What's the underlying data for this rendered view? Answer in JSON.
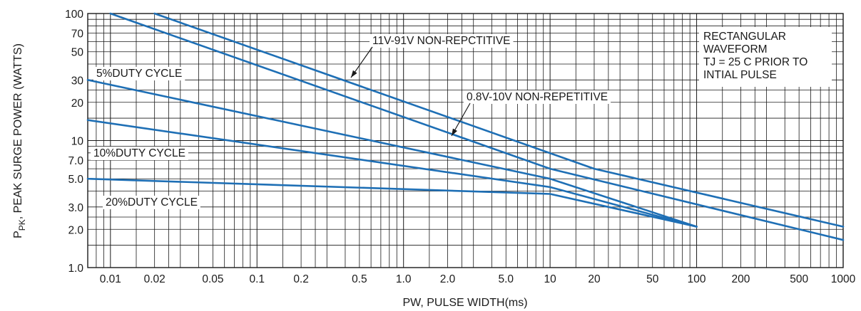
{
  "chart_data": {
    "type": "line",
    "xscale": "log",
    "yscale": "log",
    "xlim": [
      0.007,
      1000
    ],
    "ylim": [
      1.0,
      100
    ],
    "grid": true,
    "xlabel": "PW, PULSE WIDTH(ms)",
    "ylabel_main": "P",
    "ylabel_sub": "PK",
    "ylabel_rest": ", PEAK SURGE POWER (WATTS)",
    "x_ticks": [
      {
        "value": 0.01,
        "label": "0.01"
      },
      {
        "value": 0.02,
        "label": "0.02"
      },
      {
        "value": 0.05,
        "label": "0.05"
      },
      {
        "value": 0.1,
        "label": "0.1"
      },
      {
        "value": 0.2,
        "label": "0.2"
      },
      {
        "value": 0.5,
        "label": "0.5"
      },
      {
        "value": 1,
        "label": "1.0"
      },
      {
        "value": 2,
        "label": "2.0"
      },
      {
        "value": 5,
        "label": "5.0"
      },
      {
        "value": 10,
        "label": "10"
      },
      {
        "value": 20,
        "label": "20"
      },
      {
        "value": 50,
        "label": "50"
      },
      {
        "value": 100,
        "label": "100"
      },
      {
        "value": 200,
        "label": "200"
      },
      {
        "value": 500,
        "label": "500"
      },
      {
        "value": 1000,
        "label": "1000"
      }
    ],
    "y_ticks": [
      {
        "value": 1,
        "label": "1.0"
      },
      {
        "value": 2,
        "label": "2.0"
      },
      {
        "value": 3,
        "label": "3.0"
      },
      {
        "value": 5,
        "label": "5.0"
      },
      {
        "value": 7,
        "label": "7.0"
      },
      {
        "value": 10,
        "label": "10"
      },
      {
        "value": 20,
        "label": "20"
      },
      {
        "value": 30,
        "label": "30"
      },
      {
        "value": 50,
        "label": "50"
      },
      {
        "value": 70,
        "label": "70"
      },
      {
        "value": 100,
        "label": "100"
      }
    ],
    "series": [
      {
        "name": "11V-91V NON-REPCTITIVE",
        "points": [
          [
            0.02,
            100
          ],
          [
            20,
            6.0
          ],
          [
            1000,
            2.1
          ]
        ]
      },
      {
        "name": "0.8V-10V NON-REPETITIVE",
        "points": [
          [
            0.01,
            100
          ],
          [
            10,
            6.0
          ],
          [
            1000,
            1.65
          ]
        ]
      },
      {
        "name": "5%DUTY CYCLE",
        "points": [
          [
            0.007,
            30
          ],
          [
            10,
            5.0
          ],
          [
            100,
            2.1
          ]
        ]
      },
      {
        "name": "10%DUTY CYCLE",
        "points": [
          [
            0.007,
            14.5
          ],
          [
            10,
            4.3
          ],
          [
            100,
            2.1
          ]
        ]
      },
      {
        "name": "20%DUTY CYCLE",
        "points": [
          [
            0.007,
            5.0
          ],
          [
            10,
            3.8
          ],
          [
            100,
            2.1
          ]
        ]
      }
    ],
    "annotation_lines": [
      "RECTANGULAR",
      "WAVEFORM",
      "TJ = 25 C PRIOR TO",
      "INTIAL PULSE"
    ],
    "line_color": "#1e6fb5"
  }
}
